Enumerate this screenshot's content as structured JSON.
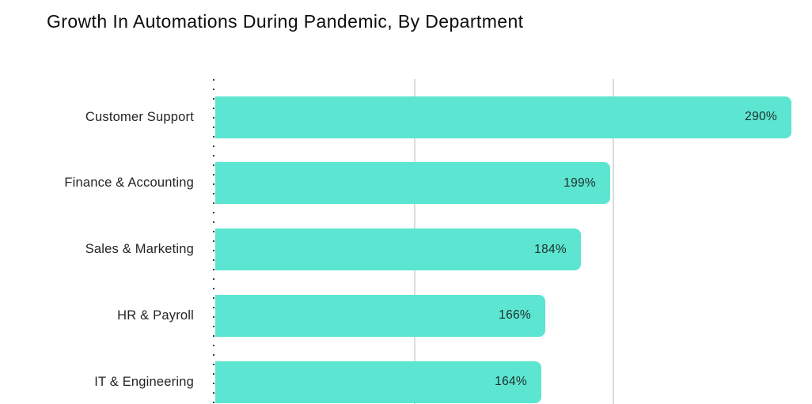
{
  "chart": {
    "title": "Growth In Automations During Pandemic, By Department",
    "colors": {
      "background": "#ffffff",
      "bar": "#5ce5d0",
      "gridline": "#dcdcdc",
      "axis_dots": "#3c3c3c",
      "title_text": "#0d0d0d",
      "category_text": "#242424",
      "value_text": "#1f2d2c"
    }
  },
  "chart_data": {
    "type": "bar",
    "orientation": "horizontal",
    "title": "Growth In Automations During Pandemic, By Department",
    "categories": [
      "Customer Support",
      "Finance & Accounting",
      "Sales & Marketing",
      "HR & Payroll",
      "IT & Engineering"
    ],
    "values": [
      290,
      199,
      184,
      166,
      164
    ],
    "value_labels": [
      "290%",
      "199%",
      "184%",
      "166%",
      "164%"
    ],
    "xlabel": "",
    "ylabel": "",
    "xlim": [
      0,
      300
    ],
    "gridline_values": [
      100,
      200
    ],
    "grid": true,
    "legend": false,
    "value_labels_position": "inside-end",
    "axis_style": "dotted-zero-line"
  }
}
